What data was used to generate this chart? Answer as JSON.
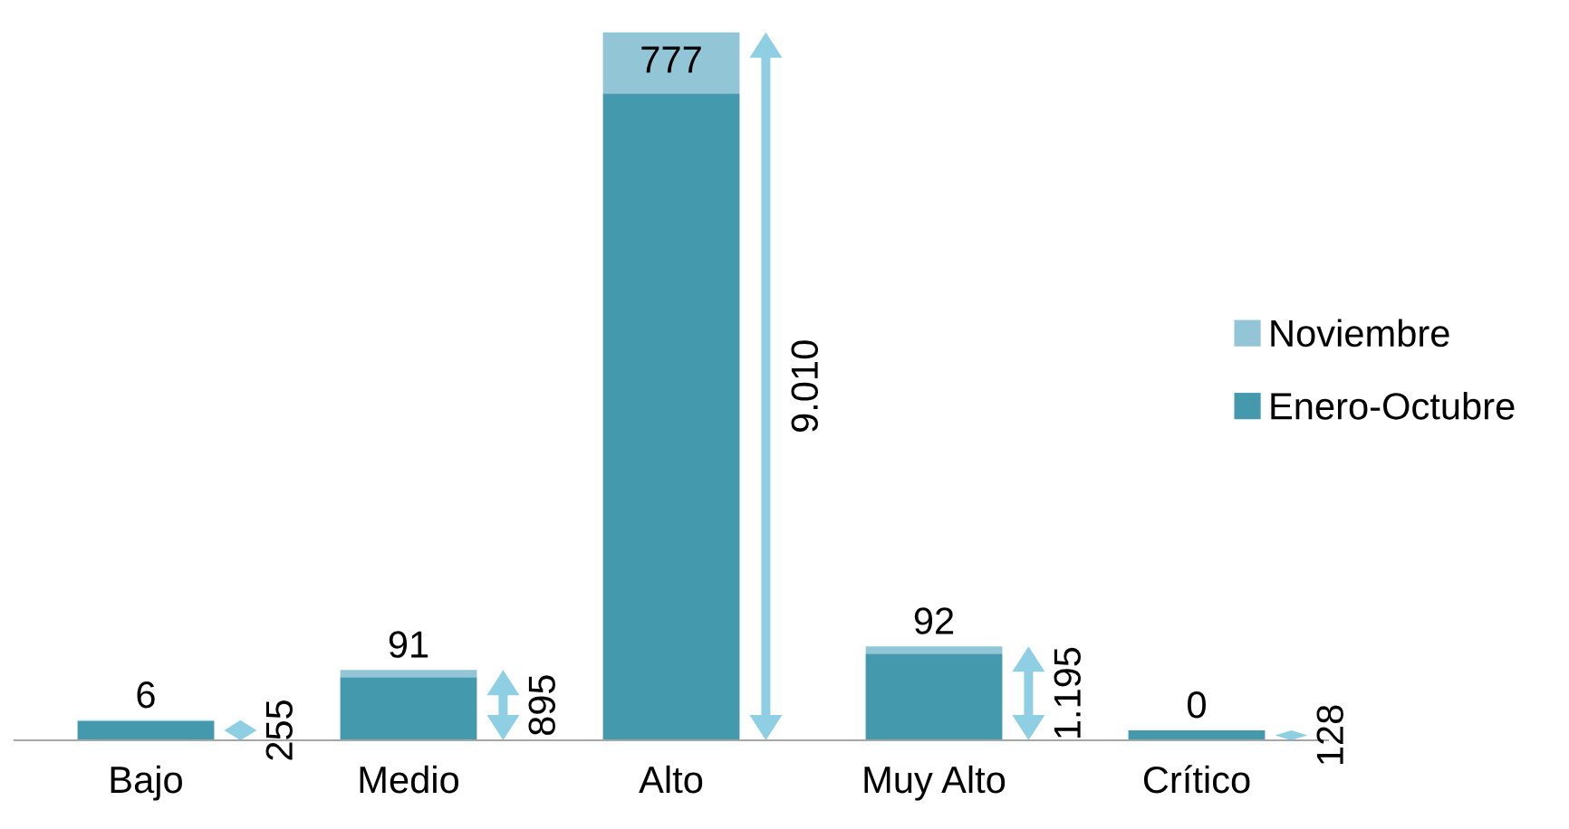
{
  "chart_data": {
    "type": "bar",
    "stacked": true,
    "categories": [
      "Bajo",
      "Medio",
      "Alto",
      "Muy Alto",
      "Crítico"
    ],
    "series": [
      {
        "name": "Enero-Octubre",
        "color": "#4499ad",
        "values": [
          249,
          804,
          8233,
          1103,
          128
        ]
      },
      {
        "name": "Noviembre",
        "color": "#92c5d5",
        "values": [
          6,
          91,
          777,
          92,
          0
        ],
        "value_labels": [
          "6",
          "91",
          "777",
          "92",
          "0"
        ]
      }
    ],
    "totals": [
      "255",
      "895",
      "9.010",
      "1.195",
      "128"
    ],
    "legend": "right",
    "grid": false
  }
}
